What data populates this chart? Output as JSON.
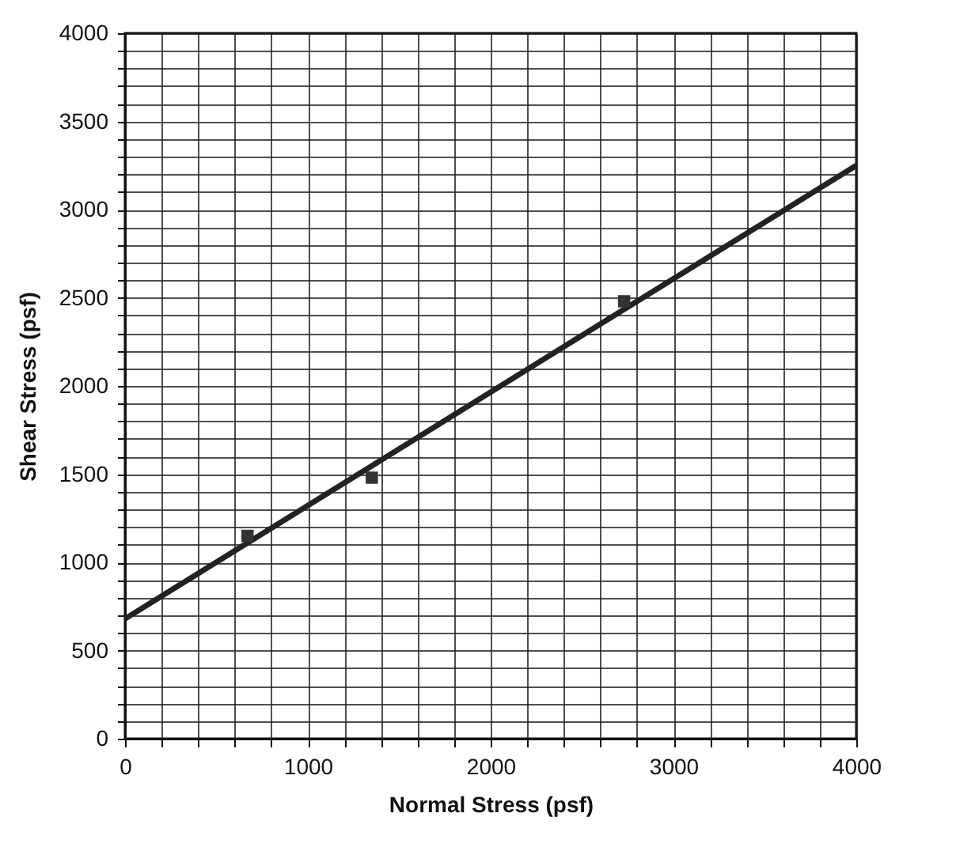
{
  "chart_data": {
    "type": "scatter",
    "xlabel": "Normal Stress (psf)",
    "ylabel": "Shear Stress (psf)",
    "xlim": [
      0,
      4000
    ],
    "ylim": [
      0,
      4000
    ],
    "xticks": [
      0,
      {
        "value": 200,
        "label": null
      },
      {
        "value": 400,
        "label": null
      },
      {
        "value": 600,
        "label": null
      },
      {
        "value": 800,
        "label": null
      },
      1000,
      {
        "value": 1200,
        "label": null
      },
      {
        "value": 1400,
        "label": null
      },
      {
        "value": 1600,
        "label": null
      },
      {
        "value": 1800,
        "label": null
      },
      2000,
      {
        "value": 2200,
        "label": null
      },
      {
        "value": 2400,
        "label": null
      },
      {
        "value": 2600,
        "label": null
      },
      {
        "value": 2800,
        "label": null
      },
      3000,
      {
        "value": 3200,
        "label": null
      },
      {
        "value": 3400,
        "label": null
      },
      {
        "value": 3600,
        "label": null
      },
      {
        "value": 3800,
        "label": null
      },
      4000
    ],
    "yticks": [
      0,
      {
        "value": 100,
        "label": null
      },
      {
        "value": 200,
        "label": null
      },
      {
        "value": 300,
        "label": null
      },
      {
        "value": 400,
        "label": null
      },
      500,
      {
        "value": 600,
        "label": null
      },
      {
        "value": 700,
        "label": null
      },
      {
        "value": 800,
        "label": null
      },
      {
        "value": 900,
        "label": null
      },
      1000,
      {
        "value": 1100,
        "label": null
      },
      {
        "value": 1200,
        "label": null
      },
      {
        "value": 1300,
        "label": null
      },
      {
        "value": 1400,
        "label": null
      },
      1500,
      {
        "value": 1600,
        "label": null
      },
      {
        "value": 1700,
        "label": null
      },
      {
        "value": 1800,
        "label": null
      },
      {
        "value": 1900,
        "label": null
      },
      2000,
      {
        "value": 2100,
        "label": null
      },
      {
        "value": 2200,
        "label": null
      },
      {
        "value": 2300,
        "label": null
      },
      {
        "value": 2400,
        "label": null
      },
      2500,
      {
        "value": 2600,
        "label": null
      },
      {
        "value": 2700,
        "label": null
      },
      {
        "value": 2800,
        "label": null
      },
      {
        "value": 2900,
        "label": null
      },
      3000,
      {
        "value": 3100,
        "label": null
      },
      {
        "value": 3200,
        "label": null
      },
      {
        "value": 3300,
        "label": null
      },
      {
        "value": 3400,
        "label": null
      },
      3500,
      {
        "value": 3600,
        "label": null
      },
      {
        "value": 3700,
        "label": null
      },
      {
        "value": 3800,
        "label": null
      },
      {
        "value": 3900,
        "label": null
      },
      4000
    ],
    "grid": true,
    "series": [
      {
        "type": "line",
        "color": "#222222",
        "x": [
          0,
          4000
        ],
        "values": [
          680,
          3250
        ],
        "marker": "none",
        "line_style": "solid"
      },
      {
        "color": "#333333",
        "x": [
          670,
          1350,
          2730
        ],
        "values": [
          1150,
          1480,
          2480
        ],
        "marker": "square"
      }
    ]
  }
}
